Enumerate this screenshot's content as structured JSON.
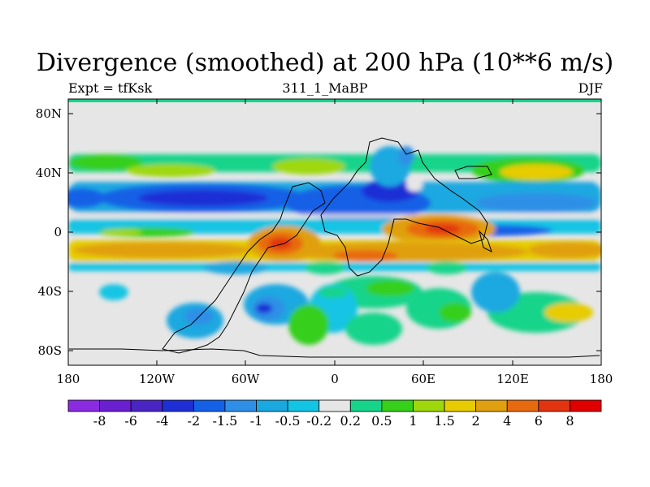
{
  "title": "Divergence (smoothed) at 200 hPa (10**6 m/s)",
  "subtitle_left": "Expt = tfKsk",
  "subtitle_center": "311_1_MaBP",
  "subtitle_right": "DJF",
  "axes": {
    "lat_ticks": [
      "80N",
      "40N",
      "0",
      "40S",
      "80S"
    ],
    "lon_ticks": [
      "180",
      "120W",
      "60W",
      "0",
      "60E",
      "120E",
      "180"
    ]
  },
  "colorbar": {
    "labels": [
      "-8",
      "-6",
      "-4",
      "-2",
      "-1.5",
      "-1",
      "-0.5",
      "-0.2",
      "0.2",
      "0.5",
      "1",
      "1.5",
      "2",
      "4",
      "6",
      "8"
    ],
    "colors": [
      "#8a2be2",
      "#6a1fd0",
      "#4b25c4",
      "#1e2fd6",
      "#1460e6",
      "#2f8fe6",
      "#1aa8e0",
      "#14c4e4",
      "#e6e6e6",
      "#16d48a",
      "#36cf1a",
      "#9ed80c",
      "#e6cc00",
      "#e0a010",
      "#e86a10",
      "#e23410",
      "#e00000"
    ]
  },
  "colors": {
    "neutral": "#e6e6e6",
    "frame": "#000000"
  }
}
